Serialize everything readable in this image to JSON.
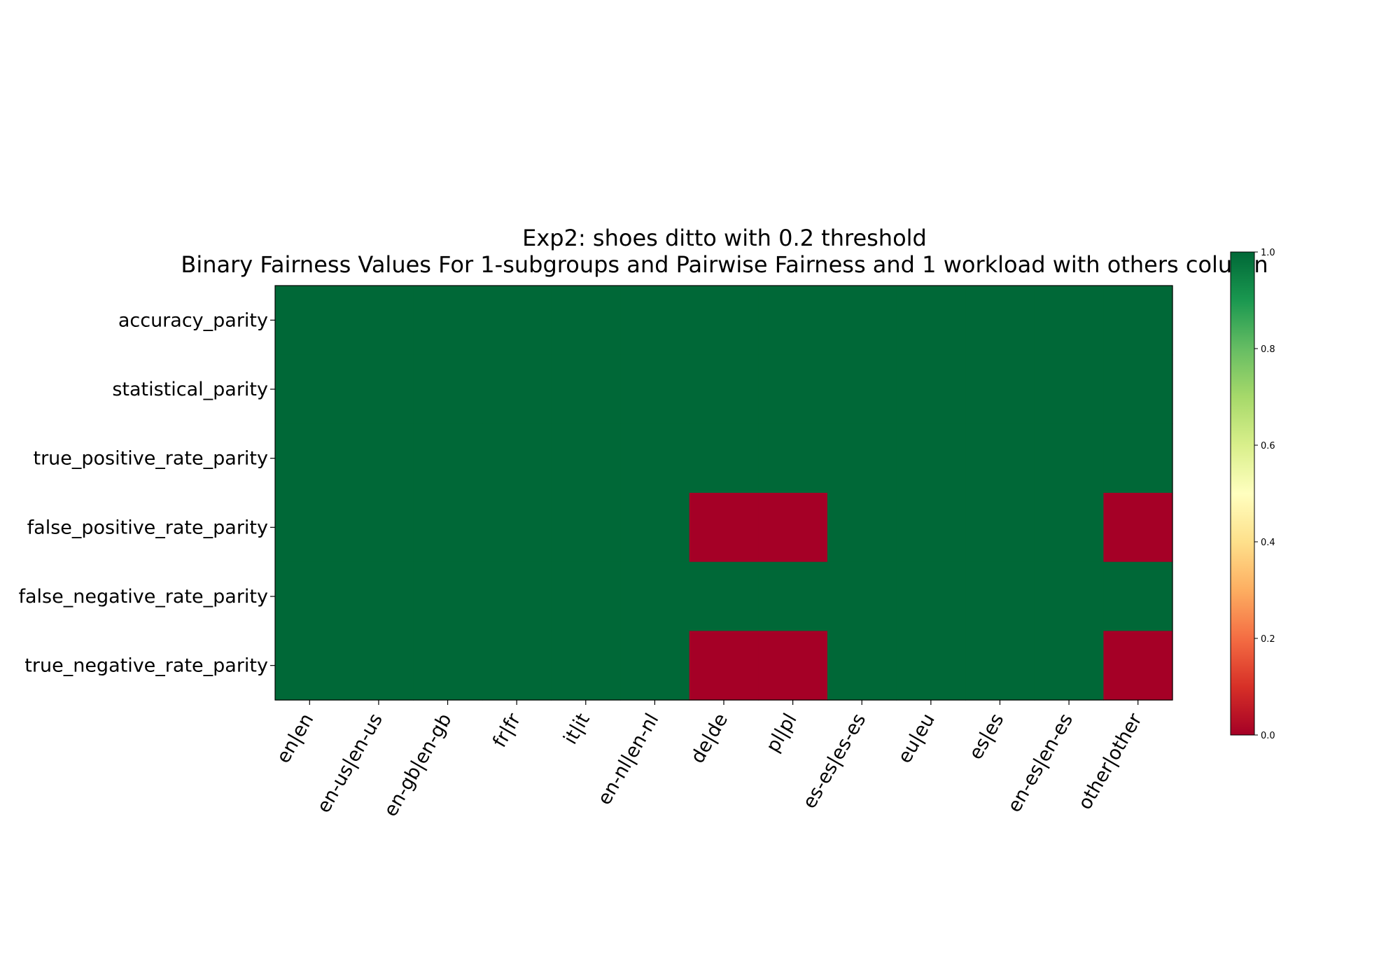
{
  "chart_data": {
    "type": "heatmap",
    "title": "Exp2: shoes ditto with 0.2 threshold",
    "subtitle": "Binary Fairness Values For 1-subgroups and Pairwise Fairness and 1 workload with others column",
    "rows": [
      "accuracy_parity",
      "statistical_parity",
      "true_positive_rate_parity",
      "false_positive_rate_parity",
      "false_negative_rate_parity",
      "true_negative_rate_parity"
    ],
    "columns": [
      "en|en",
      "en-us|en-us",
      "en-gb|en-gb",
      "fr|fr",
      "it|it",
      "en-nl|en-nl",
      "de|de",
      "pl|pl",
      "es-es|es-es",
      "eu|eu",
      "es|es",
      "en-es|en-es",
      "other|other"
    ],
    "values": [
      [
        1,
        1,
        1,
        1,
        1,
        1,
        1,
        1,
        1,
        1,
        1,
        1,
        1
      ],
      [
        1,
        1,
        1,
        1,
        1,
        1,
        1,
        1,
        1,
        1,
        1,
        1,
        1
      ],
      [
        1,
        1,
        1,
        1,
        1,
        1,
        1,
        1,
        1,
        1,
        1,
        1,
        1
      ],
      [
        1,
        1,
        1,
        1,
        1,
        1,
        0,
        0,
        1,
        1,
        1,
        1,
        0
      ],
      [
        1,
        1,
        1,
        1,
        1,
        1,
        1,
        1,
        1,
        1,
        1,
        1,
        1
      ],
      [
        1,
        1,
        1,
        1,
        1,
        1,
        0,
        0,
        1,
        1,
        1,
        1,
        0
      ]
    ],
    "colormap": "RdYlGn",
    "vmin": 0.0,
    "vmax": 1.0,
    "colorbar_ticks": [
      "0.0",
      "0.2",
      "0.4",
      "0.6",
      "0.8",
      "1.0"
    ],
    "colors": {
      "high": "#006837",
      "low": "#a50026"
    }
  }
}
